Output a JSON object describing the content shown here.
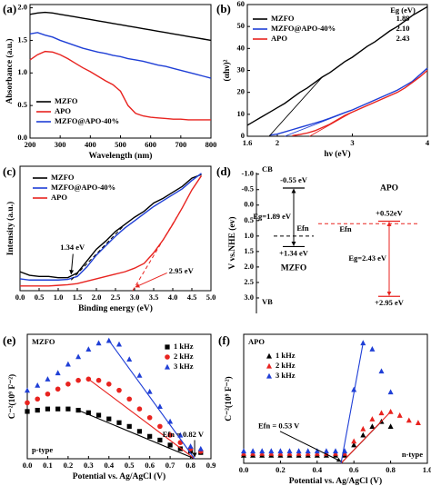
{
  "chart_data": [
    {
      "panel_label": "(a)",
      "type": "line",
      "xlabel": "Wavelength (nm)",
      "ylabel": "Absorbance (a.u.)",
      "x": [
        200,
        225,
        250,
        275,
        300,
        325,
        350,
        375,
        400,
        425,
        450,
        475,
        500,
        525,
        550,
        575,
        600,
        625,
        650,
        675,
        700,
        725,
        750,
        775,
        800
      ],
      "xlim": [
        200,
        800
      ],
      "xticks": [
        200,
        300,
        400,
        500,
        600,
        700,
        800
      ],
      "ylim": [
        0,
        2.05
      ],
      "yticks": [
        {
          "value": 0,
          "label": "0.0"
        },
        0.5,
        {
          "value": 1,
          "label": "1.0"
        },
        1.5,
        {
          "value": 2,
          "label": "2.0"
        }
      ],
      "series": [
        {
          "name": "MZFO",
          "color": "#000000",
          "values": [
            1.9,
            1.92,
            1.93,
            1.92,
            1.9,
            1.88,
            1.86,
            1.84,
            1.82,
            1.8,
            1.78,
            1.76,
            1.74,
            1.72,
            1.7,
            1.68,
            1.66,
            1.64,
            1.62,
            1.6,
            1.58,
            1.56,
            1.54,
            1.52,
            1.5
          ]
        },
        {
          "name": "APO",
          "color": "#e8231f",
          "values": [
            1.2,
            1.28,
            1.33,
            1.32,
            1.28,
            1.22,
            1.15,
            1.08,
            1.02,
            0.95,
            0.88,
            0.82,
            0.72,
            0.5,
            0.38,
            0.34,
            0.32,
            0.31,
            0.3,
            0.29,
            0.29,
            0.28,
            0.28,
            0.28,
            0.28
          ]
        },
        {
          "name": "MZFO@APO-40%",
          "color": "#1f3fd6",
          "values": [
            1.6,
            1.62,
            1.58,
            1.55,
            1.5,
            1.46,
            1.42,
            1.38,
            1.35,
            1.32,
            1.3,
            1.27,
            1.25,
            1.22,
            1.2,
            1.18,
            1.15,
            1.12,
            1.1,
            1.07,
            1.04,
            1.01,
            0.98,
            0.95,
            0.92
          ]
        }
      ]
    },
    {
      "panel_label": "(b)",
      "type": "line",
      "xlabel": "hν (eV)",
      "ylabel": "(αhν)²",
      "legend_header": "Eg (eV)",
      "x": [
        1.6,
        1.7,
        1.8,
        1.9,
        2.0,
        2.1,
        2.2,
        2.3,
        2.4,
        2.5,
        2.6,
        2.7,
        2.8,
        2.9,
        3.0,
        3.1,
        3.2,
        3.3,
        3.4,
        3.5,
        3.6,
        3.7,
        3.8,
        3.9,
        4.0
      ],
      "xlim": [
        1.6,
        4
      ],
      "xticks": [
        1.6,
        2,
        3,
        4
      ],
      "ylim": [
        0,
        60
      ],
      "yticks": [
        0,
        10,
        20,
        30,
        40,
        50,
        60
      ],
      "series": [
        {
          "name": "MZFO",
          "color": "#000000",
          "eg": {
            "value": 1.89,
            "label": "1.89"
          },
          "values": [
            5,
            7,
            9,
            11,
            13,
            15,
            17.5,
            20,
            22,
            24.5,
            27,
            29,
            31.5,
            34,
            36,
            38.5,
            41,
            43,
            45.5,
            48,
            50,
            52.5,
            55,
            57,
            59
          ]
        },
        {
          "name": "MZFO@APO-40%",
          "color": "#1f3fd6",
          "eg": {
            "value": 2.1,
            "label": "2.10"
          },
          "values": [
            null,
            null,
            null,
            0.5,
            1,
            2,
            3,
            4,
            5,
            6,
            7,
            8.2,
            9.5,
            10.8,
            12,
            13.5,
            15,
            16.5,
            18,
            19.5,
            21,
            23,
            25,
            28,
            31
          ]
        },
        {
          "name": "APO",
          "color": "#e8231f",
          "eg": {
            "value": 2.43,
            "label": "2.43"
          },
          "values": [
            null,
            null,
            null,
            null,
            null,
            null,
            0.3,
            0.8,
            1.5,
            2.5,
            4,
            5.5,
            7.5,
            9.5,
            11,
            12.5,
            14,
            15.5,
            17,
            18.5,
            20,
            22,
            24.5,
            27,
            30
          ]
        }
      ]
    },
    {
      "panel_label": "(c)",
      "type": "line",
      "xlabel": "Binding energy (eV)",
      "ylabel": "Intensity (a.u.)",
      "x": [
        0,
        0.25,
        0.5,
        0.75,
        1,
        1.25,
        1.5,
        1.75,
        2,
        2.25,
        2.5,
        2.75,
        3,
        3.25,
        3.5,
        3.75,
        4,
        4.25,
        4.5,
        4.75,
        5
      ],
      "xlim": [
        0,
        5
      ],
      "xticks": [
        {
          "value": 0,
          "label": "0.0"
        },
        0.5,
        {
          "value": 1,
          "label": "1.0"
        },
        1.5,
        {
          "value": 2,
          "label": "2.0"
        },
        2.5,
        {
          "value": 3,
          "label": "3.0"
        },
        3.5,
        {
          "value": 4,
          "label": "4.0"
        },
        4.5,
        {
          "value": 5,
          "label": "5.0"
        }
      ],
      "ylim": [
        0,
        10.5
      ],
      "series": [
        {
          "name": "MZFO",
          "color": "#000000",
          "values": [
            1.6,
            1.3,
            1.2,
            1.2,
            1.1,
            1.1,
            1.5,
            2.5,
            3.5,
            4.2,
            5.0,
            5.6,
            6.2,
            6.7,
            7.4,
            7.8,
            8.3,
            8.8,
            9.5,
            9.8,
            null
          ]
        },
        {
          "name": "MZFO@APO-40%",
          "color": "#1f3fd6",
          "values": [
            1.0,
            0.9,
            0.9,
            0.9,
            0.9,
            0.95,
            1.2,
            2.0,
            3.0,
            3.8,
            4.6,
            5.3,
            5.9,
            6.5,
            7.1,
            7.6,
            8.1,
            8.6,
            9.3,
            9.9,
            null
          ]
        },
        {
          "name": "APO",
          "color": "#e8231f",
          "values": [
            0.4,
            0.4,
            0.4,
            0.4,
            0.45,
            0.5,
            0.6,
            0.8,
            1.0,
            1.2,
            1.4,
            1.6,
            1.9,
            2.3,
            3.2,
            4.3,
            5.6,
            7.0,
            8.5,
            9.7,
            null
          ]
        }
      ],
      "onsets": [
        {
          "value": 1.34,
          "label": "1.34 eV"
        },
        {
          "value": 2.95,
          "label": "2.95 eV"
        }
      ]
    },
    {
      "panel_label": "(d)",
      "type": "band",
      "ylabel": "V vs.NHE (ev)",
      "cb_text": "CB",
      "vb_text": "VB",
      "ylim": [
        -1.05,
        3.5
      ],
      "yticks": [
        {
          "value": -1,
          "label": "-1.0"
        },
        -0.5,
        {
          "value": 0,
          "label": "0.0"
        },
        0.5,
        {
          "value": 1,
          "label": "1.0"
        },
        1.5,
        {
          "value": 2,
          "label": "2.0"
        },
        2.5,
        {
          "value": 3,
          "label": "3.0"
        }
      ],
      "bands": [
        {
          "name": "MZFO",
          "color": "#000000",
          "cb": -0.55,
          "vb": 1.34,
          "efn": 1.0,
          "cb_label": "-0.55 eV",
          "vb_label": "+1.34 eV",
          "eg_label": "Eg=1.89 eV",
          "efn_label": "Efn"
        },
        {
          "name": "APO",
          "color": "#e8231f",
          "cb": 0.52,
          "vb": 2.95,
          "efn": 0.6,
          "cb_label": "+0.52eV",
          "vb_label": "+2.95 eV",
          "eg_label": "Eg=2.43 eV",
          "efn_label": "Efn"
        }
      ]
    },
    {
      "panel_label": "(e)",
      "type": "scatter",
      "xlabel": "Potential vs. Ag/AgCl (V)",
      "ylabel": "C⁻²(10⁹ F⁻²)",
      "annotations": [
        "MZFO",
        "p-type"
      ],
      "x": [
        0,
        0.05,
        0.1,
        0.15,
        0.2,
        0.25,
        0.3,
        0.35,
        0.4,
        0.45,
        0.5,
        0.55,
        0.6,
        0.65,
        0.7,
        0.75,
        0.8,
        0.85
      ],
      "xlim": [
        0,
        0.9
      ],
      "xticks": [
        {
          "value": 0,
          "label": "0.0"
        },
        0.1,
        0.2,
        0.3,
        0.4,
        0.5,
        0.6,
        0.7,
        0.8,
        0.9
      ],
      "ylim": [
        0,
        10
      ],
      "series": [
        {
          "name": "1 kHz",
          "color": "#000000",
          "marker": "square",
          "values": [
            3.8,
            3.9,
            4.0,
            4.0,
            4.0,
            3.9,
            3.7,
            3.5,
            3.2,
            2.9,
            2.6,
            2.2,
            1.8,
            1.5,
            1.1,
            0.8,
            0.6,
            0.5
          ]
        },
        {
          "name": "2 kHz",
          "color": "#e8231f",
          "marker": "circle",
          "values": [
            4.5,
            4.8,
            5.2,
            5.6,
            6.0,
            6.3,
            6.4,
            6.3,
            6.0,
            5.5,
            4.8,
            4.0,
            3.3,
            2.6,
            1.9,
            1.3,
            0.8,
            0.6
          ]
        },
        {
          "name": "3 kHz",
          "color": "#1f3fd6",
          "marker": "triangle",
          "values": [
            5.5,
            5.9,
            6.4,
            6.9,
            7.6,
            8.2,
            8.8,
            9.3,
            9.5,
            9.2,
            8.0,
            6.7,
            5.4,
            4.2,
            3.0,
            1.9,
            1.0,
            0.8
          ]
        }
      ],
      "efn": {
        "value": 0.82,
        "label": "Efn = 0.82 V"
      }
    },
    {
      "panel_label": "(f)",
      "type": "scatter",
      "xlabel": "Potential vs. Ag/AgCl (V)",
      "ylabel": "C⁻²(10⁹ F⁻²)",
      "annotations": [
        "APO",
        "n-type"
      ],
      "x": [
        0,
        0.05,
        0.1,
        0.15,
        0.2,
        0.25,
        0.3,
        0.35,
        0.4,
        0.45,
        0.5,
        0.55,
        0.6,
        0.65,
        0.7,
        0.75,
        0.8,
        0.85,
        0.9,
        0.95
      ],
      "xlim": [
        0,
        1
      ],
      "xticks": [
        {
          "value": 0,
          "label": "0.0"
        },
        0.2,
        0.4,
        0.6,
        0.8,
        {
          "value": 1,
          "label": "1.0"
        }
      ],
      "ylim": [
        0,
        10.5
      ],
      "series": [
        {
          "name": "1 kHz",
          "color": "#000000",
          "marker": "triangle",
          "values": [
            0.65,
            0.65,
            0.65,
            0.65,
            0.65,
            0.65,
            0.65,
            0.65,
            0.65,
            0.65,
            0.65,
            0.65,
            1.5,
            2.3,
            3.0,
            3.4,
            3.0,
            null,
            null,
            null
          ]
        },
        {
          "name": "2 kHz",
          "color": "#e8231f",
          "marker": "triangle",
          "values": [
            0.8,
            0.8,
            0.8,
            0.8,
            0.8,
            0.8,
            0.8,
            0.8,
            0.8,
            0.8,
            0.8,
            0.8,
            1.8,
            2.8,
            3.6,
            4.1,
            4.2,
            3.9,
            3.5,
            3.3
          ]
        },
        {
          "name": "3 kHz",
          "color": "#1f3fd6",
          "marker": "triangle",
          "values": [
            1.0,
            1.0,
            1.0,
            1.0,
            1.0,
            1.0,
            1.0,
            1.0,
            1.0,
            1.0,
            1.0,
            1.0,
            6.0,
            9.8,
            9.3,
            7.5,
            5.8,
            null,
            null,
            null
          ]
        }
      ],
      "efn": {
        "value": 0.53,
        "label": "Efn = 0.53 V"
      }
    }
  ]
}
